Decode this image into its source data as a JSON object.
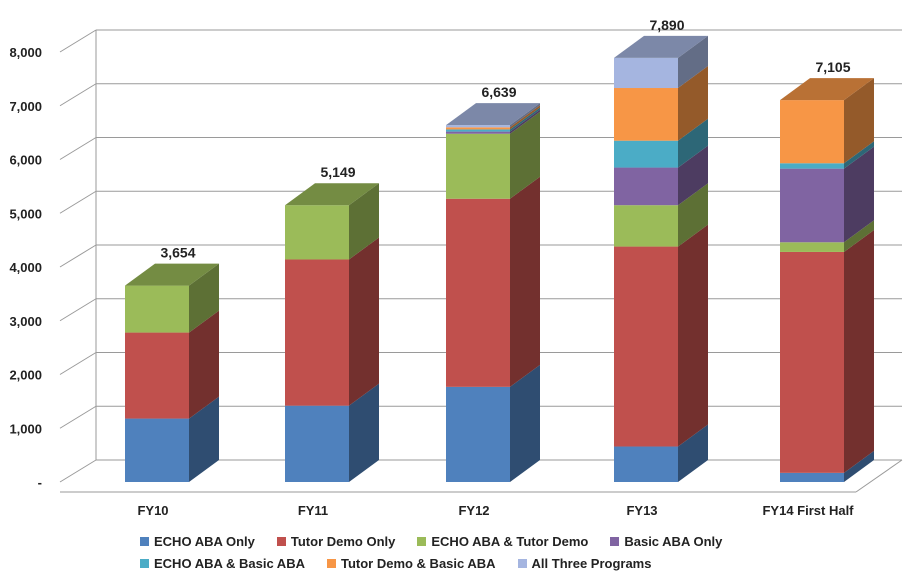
{
  "chart_data": {
    "type": "bar",
    "stacked": true,
    "three_d": true,
    "categories": [
      "FY10",
      "FY11",
      "FY12",
      "FY13",
      "FY14 First Half"
    ],
    "ylim": [
      0,
      8000
    ],
    "yticks": [
      "-",
      "1,000",
      "2,000",
      "3,000",
      "4,000",
      "5,000",
      "6,000",
      "7,000",
      "8,000"
    ],
    "totals": [
      "3,654",
      "5,149",
      "6,639",
      "7,890",
      "7,105"
    ],
    "grid": true,
    "legend_position": "bottom",
    "series": [
      {
        "name": "ECHO ABA Only",
        "color": "#4F81BD",
        "values": [
          1180,
          1420,
          1770,
          660,
          170
        ]
      },
      {
        "name": "Tutor Demo Only",
        "color": "#C0504D",
        "values": [
          1600,
          2720,
          3500,
          3720,
          4110
        ]
      },
      {
        "name": "ECHO ABA & Tutor Demo",
        "color": "#9BBB59",
        "values": [
          874,
          1009,
          1209,
          770,
          180
        ]
      },
      {
        "name": "Basic ABA Only",
        "color": "#8064A2",
        "values": [
          0,
          0,
          40,
          700,
          1370
        ]
      },
      {
        "name": "ECHO ABA & Basic ABA",
        "color": "#4BACC6",
        "values": [
          0,
          0,
          40,
          500,
          100
        ]
      },
      {
        "name": "Tutor Demo & Basic ABA",
        "color": "#F79646",
        "values": [
          0,
          0,
          40,
          980,
          1175
        ]
      },
      {
        "name": "All Three Programs",
        "color": "#A5B5E0",
        "values": [
          0,
          0,
          40,
          560,
          0
        ]
      }
    ]
  }
}
